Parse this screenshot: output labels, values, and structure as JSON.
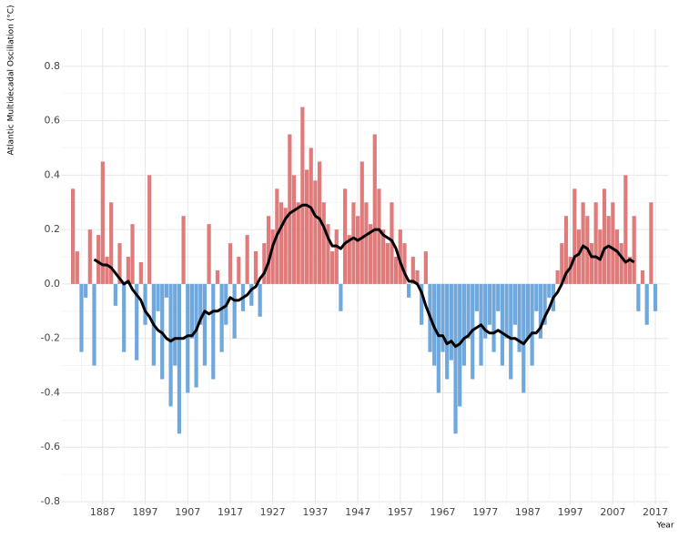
{
  "chart_data": {
    "type": "bar-line",
    "y_label": "Atlantic Multidecadal Oscillation (°C)",
    "x_label": "Year",
    "xlim": [
      1877.4,
      2020.2
    ],
    "xticks": [
      1887,
      1897,
      1907,
      1917,
      1927,
      1937,
      1947,
      1957,
      1967,
      1977,
      1987,
      1997,
      2007,
      2017
    ],
    "ylim": [
      -0.81,
      0.94
    ],
    "yticks": [
      -0.8,
      -0.6,
      -0.4,
      -0.2,
      {
        "value": 0,
        "label": "0.0"
      },
      0.2,
      0.4,
      0.6,
      0.8
    ],
    "grid": true,
    "positive_color": "#e07b7b",
    "negative_color": "#6fa8dc",
    "line_color": "#000000",
    "bars": {
      "x": [
        1880,
        1881,
        1882,
        1883,
        1884,
        1885,
        1886,
        1887,
        1888,
        1889,
        1890,
        1891,
        1892,
        1893,
        1894,
        1895,
        1896,
        1897,
        1898,
        1899,
        1900,
        1901,
        1902,
        1903,
        1904,
        1905,
        1906,
        1907,
        1908,
        1909,
        1910,
        1911,
        1912,
        1913,
        1914,
        1915,
        1916,
        1917,
        1918,
        1919,
        1920,
        1921,
        1922,
        1923,
        1924,
        1925,
        1926,
        1927,
        1928,
        1929,
        1930,
        1931,
        1932,
        1933,
        1934,
        1935,
        1936,
        1937,
        1938,
        1939,
        1940,
        1941,
        1942,
        1943,
        1944,
        1945,
        1946,
        1947,
        1948,
        1949,
        1950,
        1951,
        1952,
        1953,
        1954,
        1955,
        1956,
        1957,
        1958,
        1959,
        1960,
        1961,
        1962,
        1963,
        1964,
        1965,
        1966,
        1967,
        1968,
        1969,
        1970,
        1971,
        1972,
        1973,
        1974,
        1975,
        1976,
        1977,
        1978,
        1979,
        1980,
        1981,
        1982,
        1983,
        1984,
        1985,
        1986,
        1987,
        1988,
        1989,
        1990,
        1991,
        1992,
        1993,
        1994,
        1995,
        1996,
        1997,
        1998,
        1999,
        2000,
        2001,
        2002,
        2003,
        2004,
        2005,
        2006,
        2007,
        2008,
        2009,
        2010,
        2011,
        2012,
        2013,
        2014,
        2015,
        2016,
        2017
      ],
      "values": [
        0.35,
        0.12,
        -0.25,
        -0.05,
        0.2,
        -0.3,
        0.18,
        0.45,
        0.1,
        0.3,
        -0.08,
        0.15,
        -0.25,
        0.1,
        0.22,
        -0.28,
        0.08,
        -0.15,
        0.4,
        -0.3,
        -0.1,
        -0.35,
        -0.05,
        -0.45,
        -0.3,
        -0.55,
        0.25,
        -0.4,
        -0.2,
        -0.38,
        -0.15,
        -0.3,
        0.22,
        -0.35,
        0.05,
        -0.25,
        -0.15,
        0.15,
        -0.2,
        0.1,
        -0.1,
        0.18,
        -0.08,
        0.12,
        -0.12,
        0.15,
        0.25,
        0.2,
        0.35,
        0.3,
        0.28,
        0.55,
        0.4,
        0.3,
        0.65,
        0.42,
        0.5,
        0.38,
        0.45,
        0.3,
        0.22,
        0.12,
        0.2,
        -0.1,
        0.35,
        0.18,
        0.3,
        0.25,
        0.45,
        0.3,
        0.22,
        0.55,
        0.35,
        0.2,
        0.15,
        0.3,
        0.1,
        0.2,
        0.15,
        -0.05,
        0.1,
        0.05,
        -0.15,
        0.12,
        -0.25,
        -0.3,
        -0.4,
        -0.25,
        -0.35,
        -0.28,
        -0.55,
        -0.45,
        -0.3,
        -0.2,
        -0.35,
        -0.1,
        -0.3,
        -0.2,
        -0.15,
        -0.25,
        -0.1,
        -0.3,
        -0.2,
        -0.35,
        -0.15,
        -0.25,
        -0.4,
        -0.2,
        -0.3,
        -0.1,
        -0.2,
        -0.15,
        -0.05,
        -0.1,
        0.05,
        0.15,
        0.25,
        0.1,
        0.35,
        0.2,
        0.3,
        0.25,
        0.15,
        0.3,
        0.2,
        0.35,
        0.25,
        0.3,
        0.2,
        0.15,
        0.4,
        0.1,
        0.25,
        -0.1,
        0.05,
        -0.15,
        0.3,
        -0.1
      ]
    },
    "line": {
      "x": [
        1885,
        1886,
        1887,
        1888,
        1889,
        1890,
        1891,
        1892,
        1893,
        1894,
        1895,
        1896,
        1897,
        1898,
        1899,
        1900,
        1901,
        1902,
        1903,
        1904,
        1905,
        1906,
        1907,
        1908,
        1909,
        1910,
        1911,
        1912,
        1913,
        1914,
        1915,
        1916,
        1917,
        1918,
        1919,
        1920,
        1921,
        1922,
        1923,
        1924,
        1925,
        1926,
        1927,
        1928,
        1929,
        1930,
        1931,
        1932,
        1933,
        1934,
        1935,
        1936,
        1937,
        1938,
        1939,
        1940,
        1941,
        1942,
        1943,
        1944,
        1945,
        1946,
        1947,
        1948,
        1949,
        1950,
        1951,
        1952,
        1953,
        1954,
        1955,
        1956,
        1957,
        1958,
        1959,
        1960,
        1961,
        1962,
        1963,
        1964,
        1965,
        1966,
        1967,
        1968,
        1969,
        1970,
        1971,
        1972,
        1973,
        1974,
        1975,
        1976,
        1977,
        1978,
        1979,
        1980,
        1981,
        1982,
        1983,
        1984,
        1985,
        1986,
        1987,
        1988,
        1989,
        1990,
        1991,
        1992,
        1993,
        1994,
        1995,
        1996,
        1997,
        1998,
        1999,
        2000,
        2001,
        2002,
        2003,
        2004,
        2005,
        2006,
        2007,
        2008,
        2009,
        2010,
        2011,
        2012
      ],
      "values": [
        0.09,
        0.08,
        0.07,
        0.07,
        0.06,
        0.04,
        0.02,
        0.0,
        0.01,
        -0.02,
        -0.04,
        -0.06,
        -0.1,
        -0.12,
        -0.15,
        -0.17,
        -0.18,
        -0.2,
        -0.21,
        -0.2,
        -0.2,
        -0.2,
        -0.19,
        -0.19,
        -0.17,
        -0.13,
        -0.1,
        -0.11,
        -0.1,
        -0.1,
        -0.09,
        -0.08,
        -0.05,
        -0.06,
        -0.06,
        -0.05,
        -0.04,
        -0.02,
        -0.01,
        0.02,
        0.04,
        0.08,
        0.14,
        0.18,
        0.21,
        0.24,
        0.26,
        0.27,
        0.28,
        0.29,
        0.29,
        0.28,
        0.25,
        0.24,
        0.21,
        0.17,
        0.14,
        0.14,
        0.13,
        0.15,
        0.16,
        0.17,
        0.16,
        0.17,
        0.18,
        0.19,
        0.2,
        0.2,
        0.18,
        0.17,
        0.16,
        0.13,
        0.08,
        0.04,
        0.01,
        0.01,
        0.0,
        -0.03,
        -0.08,
        -0.12,
        -0.16,
        -0.19,
        -0.19,
        -0.22,
        -0.21,
        -0.23,
        -0.22,
        -0.2,
        -0.19,
        -0.17,
        -0.16,
        -0.15,
        -0.17,
        -0.18,
        -0.18,
        -0.17,
        -0.18,
        -0.19,
        -0.2,
        -0.2,
        -0.21,
        -0.22,
        -0.2,
        -0.18,
        -0.18,
        -0.16,
        -0.12,
        -0.09,
        -0.05,
        -0.03,
        0.0,
        0.04,
        0.06,
        0.1,
        0.11,
        0.14,
        0.13,
        0.1,
        0.1,
        0.09,
        0.13,
        0.14,
        0.13,
        0.12,
        0.1,
        0.08,
        0.09,
        0.08
      ]
    }
  }
}
